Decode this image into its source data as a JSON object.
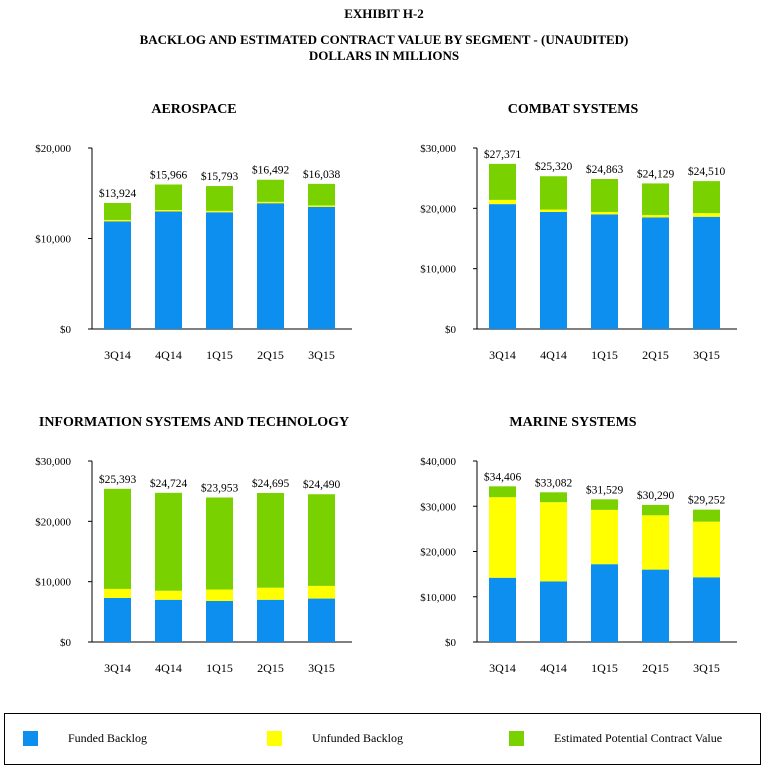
{
  "header": {
    "line1": "EXHIBIT H-2",
    "line2": "BACKLOG AND ESTIMATED CONTRACT VALUE BY SEGMENT - (UNAUDITED)",
    "line3": "DOLLARS IN MILLIONS"
  },
  "colors": {
    "funded": "#0d8fef",
    "unfunded": "#ffff00",
    "potential": "#79d100"
  },
  "legend": {
    "funded": "Funded Backlog",
    "unfunded": "Unfunded Backlog",
    "potential": "Estimated Potential Contract Value"
  },
  "chart_data": [
    {
      "type": "bar",
      "stacked": true,
      "title": "AEROSPACE",
      "categories": [
        "3Q14",
        "4Q14",
        "1Q15",
        "2Q15",
        "3Q15"
      ],
      "ylim": [
        0,
        20000
      ],
      "yticks": [
        0,
        10000,
        20000
      ],
      "ytick_labels": [
        "$0",
        "$10,000",
        "$20,000"
      ],
      "series": [
        {
          "name": "Funded Backlog",
          "key": "funded",
          "values": [
            11900,
            13000,
            12900,
            13900,
            13500
          ]
        },
        {
          "name": "Unfunded Backlog",
          "key": "unfunded",
          "values": [
            150,
            150,
            150,
            150,
            150
          ]
        },
        {
          "name": "Estimated Potential Contract Value",
          "key": "potential",
          "values": [
            1874,
            2816,
            2743,
            2442,
            2388
          ]
        }
      ],
      "totals": [
        13924,
        15966,
        15793,
        16492,
        16038
      ],
      "total_labels": [
        "$13,924",
        "$15,966",
        "$15,793",
        "$16,492",
        "$16,038"
      ]
    },
    {
      "type": "bar",
      "stacked": true,
      "title": "COMBAT SYSTEMS",
      "categories": [
        "3Q14",
        "4Q14",
        "1Q15",
        "2Q15",
        "3Q15"
      ],
      "ylim": [
        0,
        30000
      ],
      "yticks": [
        0,
        10000,
        20000,
        30000
      ],
      "ytick_labels": [
        "$0",
        "$10,000",
        "$20,000",
        "$30,000"
      ],
      "series": [
        {
          "name": "Funded Backlog",
          "key": "funded",
          "values": [
            20700,
            19400,
            19000,
            18500,
            18600
          ]
        },
        {
          "name": "Unfunded Backlog",
          "key": "unfunded",
          "values": [
            700,
            400,
            400,
            400,
            600
          ]
        },
        {
          "name": "Estimated Potential Contract Value",
          "key": "potential",
          "values": [
            5971,
            5520,
            5463,
            5229,
            5310
          ]
        }
      ],
      "totals": [
        27371,
        25320,
        24863,
        24129,
        24510
      ],
      "total_labels": [
        "$27,371",
        "$25,320",
        "$24,863",
        "$24,129",
        "$24,510"
      ]
    },
    {
      "type": "bar",
      "stacked": true,
      "title": "INFORMATION SYSTEMS AND TECHNOLOGY",
      "categories": [
        "3Q14",
        "4Q14",
        "1Q15",
        "2Q15",
        "3Q15"
      ],
      "ylim": [
        0,
        30000
      ],
      "yticks": [
        0,
        10000,
        20000,
        30000
      ],
      "ytick_labels": [
        "$0",
        "$10,000",
        "$20,000",
        "$30,000"
      ],
      "series": [
        {
          "name": "Funded Backlog",
          "key": "funded",
          "values": [
            7300,
            7000,
            6800,
            7000,
            7200
          ]
        },
        {
          "name": "Unfunded Backlog",
          "key": "unfunded",
          "values": [
            1500,
            1500,
            1900,
            2000,
            2100
          ]
        },
        {
          "name": "Estimated Potential Contract Value",
          "key": "potential",
          "values": [
            16593,
            16224,
            15253,
            15695,
            15190
          ]
        }
      ],
      "totals": [
        25393,
        24724,
        23953,
        24695,
        24490
      ],
      "total_labels": [
        "$25,393",
        "$24,724",
        "$23,953",
        "$24,695",
        "$24,490"
      ]
    },
    {
      "type": "bar",
      "stacked": true,
      "title": "MARINE SYSTEMS",
      "categories": [
        "3Q14",
        "4Q14",
        "1Q15",
        "2Q15",
        "3Q15"
      ],
      "ylim": [
        0,
        40000
      ],
      "yticks": [
        0,
        10000,
        20000,
        30000,
        40000
      ],
      "ytick_labels": [
        "$0",
        "$10,000",
        "$20,000",
        "$30,000",
        "$40,000"
      ],
      "series": [
        {
          "name": "Funded Backlog",
          "key": "funded",
          "values": [
            14200,
            13400,
            17200,
            16000,
            14300
          ]
        },
        {
          "name": "Unfunded Backlog",
          "key": "unfunded",
          "values": [
            17800,
            17500,
            12000,
            12000,
            12300
          ]
        },
        {
          "name": "Estimated Potential Contract Value",
          "key": "potential",
          "values": [
            2406,
            2182,
            2329,
            2290,
            2652
          ]
        }
      ],
      "totals": [
        34406,
        33082,
        31529,
        30290,
        29252
      ],
      "total_labels": [
        "$34,406",
        "$33,082",
        "$31,529",
        "$30,290",
        "$29,252"
      ]
    }
  ]
}
